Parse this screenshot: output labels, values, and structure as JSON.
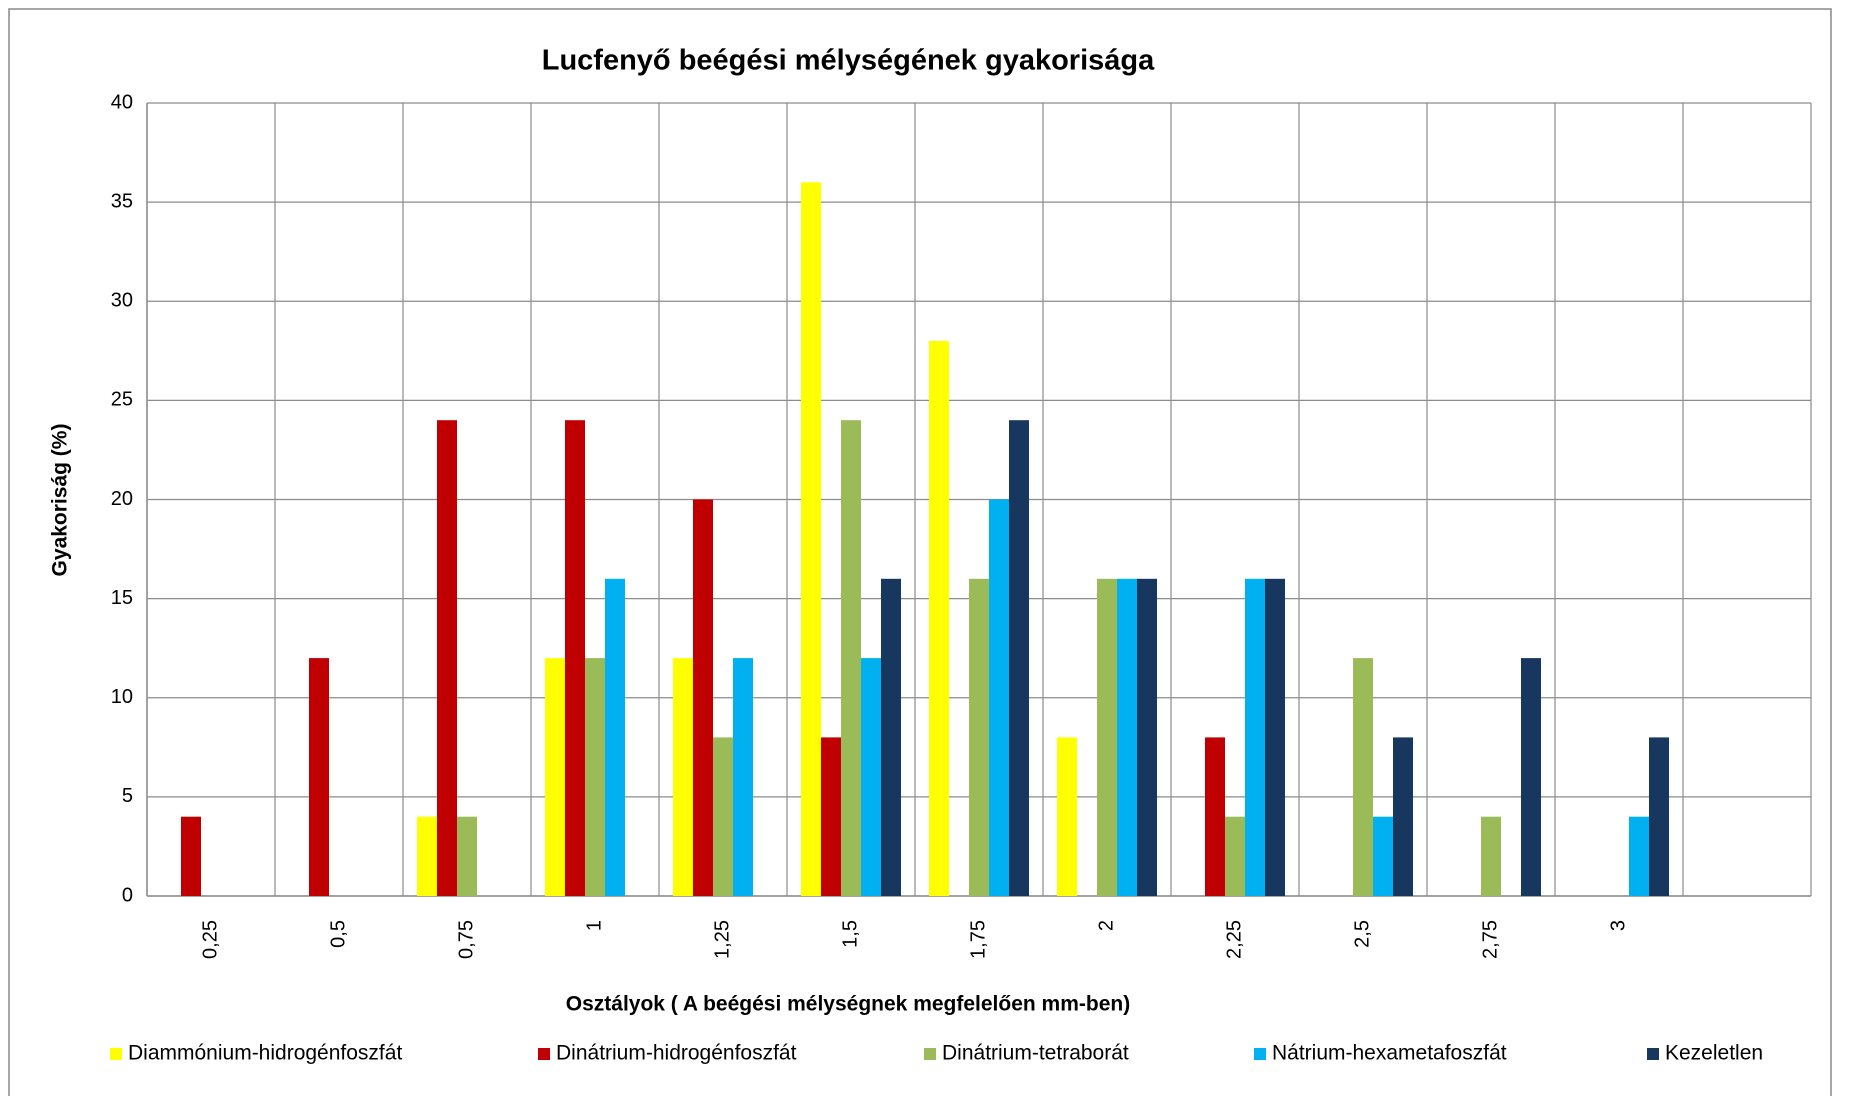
{
  "chart_data": {
    "type": "bar",
    "title": "Lucfenyő beégési mélységének gyakorisága",
    "x_label": "Osztályok ( A beégési mélységnek megfelelően mm-ben)",
    "y_label": "Gyakoriság (%)",
    "categories": [
      "0,25",
      "0,5",
      "0,75",
      "1",
      "1,25",
      "1,5",
      "1,75",
      "2",
      "2,25",
      "2,5",
      "2,75",
      "3",
      null
    ],
    "series": [
      {
        "name": "Diammónium-hidrogénfoszfát",
        "color": "#ffff00",
        "values": [
          0,
          0,
          4,
          12,
          12,
          36,
          28,
          8,
          0,
          0,
          0,
          0,
          0
        ]
      },
      {
        "name": "Dinátrium-hidrogénfoszfát",
        "color": "#c00000",
        "values": [
          4,
          12,
          24,
          24,
          20,
          8,
          0,
          0,
          8,
          0,
          0,
          0,
          0
        ]
      },
      {
        "name": "Dinátrium-tetraborát",
        "color": "#9bbb59",
        "values": [
          0,
          0,
          4,
          12,
          8,
          24,
          16,
          16,
          4,
          12,
          4,
          0,
          0
        ]
      },
      {
        "name": "Nátrium-hexametafoszfát",
        "color": "#00b0f0",
        "values": [
          0,
          0,
          0,
          16,
          12,
          12,
          20,
          16,
          16,
          4,
          0,
          4,
          0
        ]
      },
      {
        "name": "Kezeletlen",
        "color": "#17375e",
        "values": [
          0,
          0,
          0,
          0,
          0,
          16,
          24,
          16,
          16,
          8,
          12,
          8,
          0
        ]
      }
    ],
    "ylim": [
      0,
      40
    ],
    "yticks": [
      0,
      5,
      10,
      15,
      20,
      25,
      30,
      35,
      40
    ],
    "grid": true,
    "legend": "bottom"
  }
}
